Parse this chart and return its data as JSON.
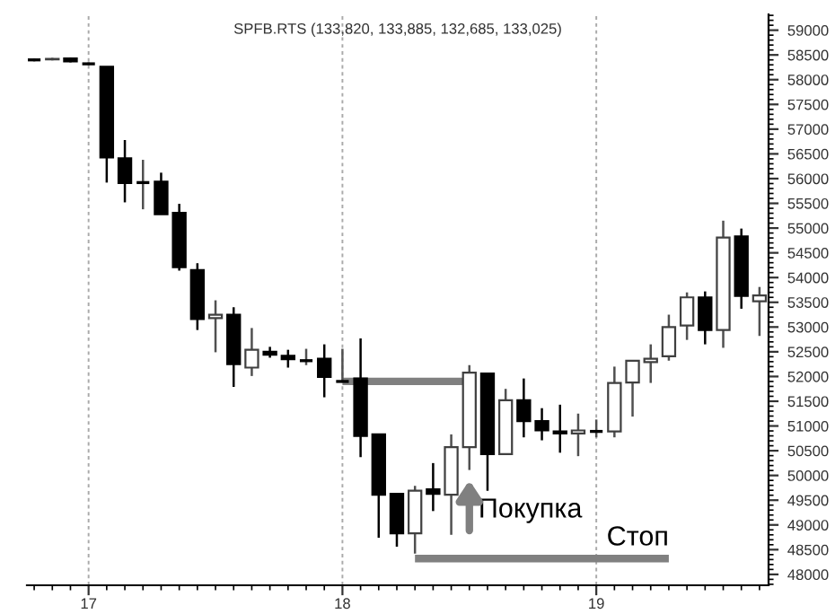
{
  "chart_data": {
    "type": "candlestick",
    "title": "SPFB.RTS (133,820, 133,885, 132,685, 133,025)",
    "categories": [
      null,
      null,
      null,
      "17",
      null,
      null,
      null,
      null,
      null,
      null,
      null,
      null,
      null,
      null,
      null,
      null,
      null,
      "18",
      null,
      null,
      null,
      null,
      null,
      null,
      null,
      null,
      null,
      null,
      null,
      null,
      null,
      "19",
      null,
      null,
      null,
      null,
      null,
      null,
      null,
      null,
      null
    ],
    "ohlc": [
      [
        58400,
        58430,
        58370,
        58400
      ],
      [
        58410,
        58440,
        58390,
        58420
      ],
      [
        58430,
        58450,
        58350,
        58370
      ],
      [
        58320,
        58350,
        58300,
        58320
      ],
      [
        58260,
        58260,
        55920,
        56430
      ],
      [
        56410,
        56780,
        55520,
        55910
      ],
      [
        55920,
        56380,
        55380,
        55920
      ],
      [
        55940,
        56120,
        55280,
        55280
      ],
      [
        55310,
        55490,
        54140,
        54210
      ],
      [
        54150,
        54290,
        52940,
        53160
      ],
      [
        53180,
        53540,
        52490,
        53250
      ],
      [
        53250,
        53400,
        51790,
        52250
      ],
      [
        52180,
        52980,
        52010,
        52540
      ],
      [
        52500,
        52600,
        52380,
        52440
      ],
      [
        52420,
        52540,
        52180,
        52350
      ],
      [
        52320,
        52560,
        52230,
        52320
      ],
      [
        52360,
        52650,
        51580,
        51990
      ],
      [
        51900,
        52560,
        51880,
        51900
      ],
      [
        51960,
        52770,
        50370,
        50800
      ],
      [
        50830,
        50830,
        48740,
        49610
      ],
      [
        49630,
        49630,
        48560,
        48830
      ],
      [
        48830,
        49790,
        48420,
        49690
      ],
      [
        49720,
        50250,
        49280,
        49630
      ],
      [
        49610,
        50830,
        48800,
        50570
      ],
      [
        50570,
        52230,
        50110,
        52080
      ],
      [
        52060,
        52070,
        49690,
        50430
      ],
      [
        50430,
        51750,
        50430,
        51520
      ],
      [
        51520,
        51960,
        50770,
        51100
      ],
      [
        51100,
        51360,
        50710,
        50910
      ],
      [
        50890,
        51430,
        50460,
        50850
      ],
      [
        50850,
        51250,
        50390,
        50910
      ],
      [
        50890,
        51130,
        50770,
        50890
      ],
      [
        50890,
        52200,
        50770,
        51870
      ],
      [
        51880,
        52320,
        51190,
        52320
      ],
      [
        52290,
        52650,
        51870,
        52360
      ],
      [
        52410,
        53250,
        52320,
        53000
      ],
      [
        53030,
        53700,
        52740,
        53600
      ],
      [
        53600,
        53720,
        52650,
        52940
      ],
      [
        52940,
        55150,
        52580,
        54810
      ],
      [
        54830,
        54990,
        53370,
        53630
      ],
      [
        53520,
        53810,
        52820,
        53640
      ]
    ],
    "series": [
      {
        "type": "line",
        "color": "#808080",
        "values": [
          null,
          null,
          null,
          null,
          null,
          null,
          null,
          null,
          null,
          null,
          null,
          null,
          null,
          null,
          null,
          null,
          null,
          51900,
          51900,
          51900,
          51900,
          51900,
          51900,
          51900,
          51900,
          null,
          null,
          null,
          null,
          null,
          null,
          null,
          null,
          null,
          null,
          null,
          null,
          null,
          null,
          null,
          null
        ]
      },
      {
        "type": "line",
        "color": "#808080",
        "values": [
          null,
          null,
          null,
          null,
          null,
          null,
          null,
          null,
          null,
          null,
          null,
          null,
          null,
          null,
          null,
          null,
          null,
          null,
          null,
          null,
          null,
          48320,
          48320,
          48320,
          48320,
          48320,
          48320,
          48320,
          48320,
          48320,
          48320,
          48320,
          48320,
          48320,
          48320,
          48320,
          null,
          null,
          null,
          null,
          null
        ]
      }
    ],
    "annotations": [
      "Покупка",
      "Стоп"
    ],
    "ylim": [
      47780,
      59320
    ],
    "yticks": [
      48000,
      48500,
      49000,
      49500,
      50000,
      50500,
      51000,
      51500,
      52000,
      52500,
      53000,
      53500,
      54000,
      54500,
      55000,
      55500,
      56000,
      56500,
      57000,
      57500,
      58000,
      58500,
      59000
    ],
    "grid": "x"
  }
}
